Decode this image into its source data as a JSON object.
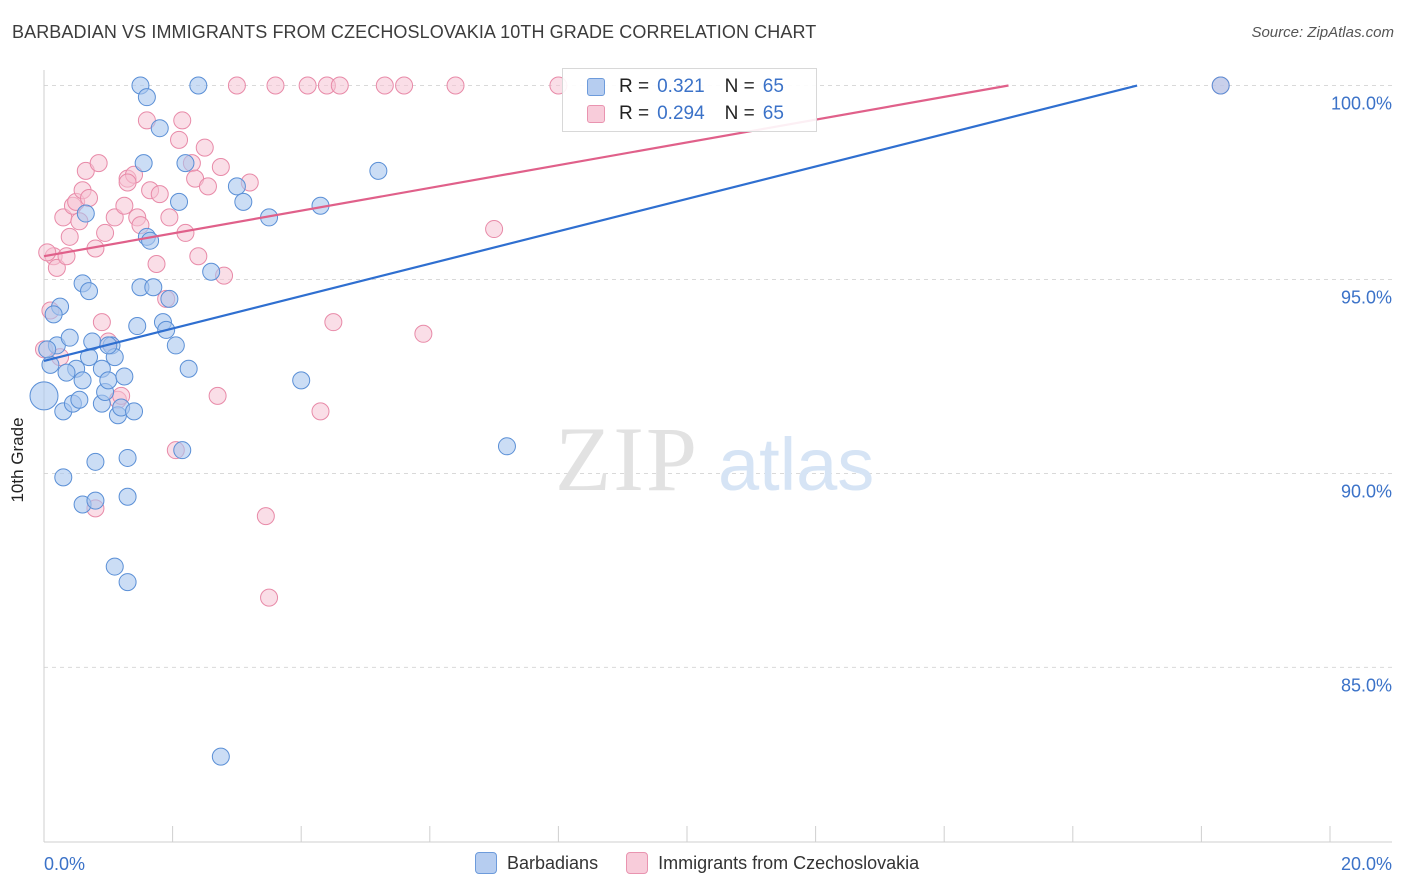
{
  "header": {
    "title": "BARBADIAN VS IMMIGRANTS FROM CZECHOSLOVAKIA 10TH GRADE CORRELATION CHART",
    "source": "Source: ZipAtlas.com"
  },
  "watermark": {
    "zip": "ZIP",
    "atlas": "atlas"
  },
  "legend": {
    "rows": [
      {
        "r_label": "R =",
        "r_value": "0.321",
        "n_label": "N =",
        "n_value": "65"
      },
      {
        "r_label": "R =",
        "r_value": "0.294",
        "n_label": "N =",
        "n_value": "65"
      }
    ],
    "bottom": [
      "Barbadians",
      "Immigrants from Czechoslovakia"
    ]
  },
  "colors": {
    "blue_fill": "#a9c6ee",
    "blue_stroke": "#5a8fd6",
    "blue_line": "#2f6fd0",
    "pink_fill": "#f6c3d3",
    "pink_stroke": "#e88aa8",
    "pink_line": "#e0608a",
    "tick_text": "#3b72c8",
    "grid": "#d9d9d9"
  },
  "chart_data": {
    "type": "scatter",
    "title": "BARBADIAN VS IMMIGRANTS FROM CZECHOSLOVAKIA 10TH GRADE CORRELATION CHART",
    "xlabel": "",
    "ylabel": "10th Grade",
    "xlim": [
      0,
      20
    ],
    "ylim": [
      80.5,
      100.4
    ],
    "x_tick_labels": [
      "0.0%",
      "20.0%"
    ],
    "y_ticks": [
      85,
      90,
      95,
      100
    ],
    "y_tick_labels": [
      "85.0%",
      "90.0%",
      "95.0%",
      "100.0%"
    ],
    "grid": true,
    "legend_position": "top-center",
    "series": [
      {
        "name": "Barbadians",
        "r": 0.321,
        "n": 65,
        "trend": {
          "x": [
            0,
            17.0
          ],
          "y": [
            92.9,
            100.0
          ]
        },
        "points": [
          [
            0.0,
            92.0
          ],
          [
            0.1,
            92.8
          ],
          [
            0.2,
            93.3
          ],
          [
            0.25,
            94.3
          ],
          [
            0.3,
            91.6
          ],
          [
            0.3,
            89.9
          ],
          [
            0.4,
            93.5
          ],
          [
            0.45,
            91.8
          ],
          [
            0.5,
            92.7
          ],
          [
            0.6,
            92.4
          ],
          [
            0.6,
            89.2
          ],
          [
            0.6,
            94.9
          ],
          [
            0.65,
            96.7
          ],
          [
            0.7,
            94.7
          ],
          [
            0.7,
            93.0
          ],
          [
            0.75,
            93.4
          ],
          [
            0.8,
            90.3
          ],
          [
            0.8,
            89.3
          ],
          [
            0.9,
            91.8
          ],
          [
            0.9,
            92.7
          ],
          [
            0.95,
            92.1
          ],
          [
            1.0,
            92.4
          ],
          [
            1.05,
            93.3
          ],
          [
            1.1,
            87.6
          ],
          [
            1.1,
            93.0
          ],
          [
            1.15,
            91.5
          ],
          [
            1.2,
            91.7
          ],
          [
            1.25,
            92.5
          ],
          [
            1.3,
            87.2
          ],
          [
            1.3,
            90.4
          ],
          [
            1.3,
            89.4
          ],
          [
            1.4,
            91.6
          ],
          [
            1.45,
            93.8
          ],
          [
            1.5,
            94.8
          ],
          [
            1.5,
            100.0
          ],
          [
            1.55,
            98.0
          ],
          [
            1.6,
            99.7
          ],
          [
            1.6,
            96.1
          ],
          [
            1.65,
            96.0
          ],
          [
            1.7,
            94.8
          ],
          [
            1.8,
            98.9
          ],
          [
            1.85,
            93.9
          ],
          [
            1.9,
            93.7
          ],
          [
            1.95,
            94.5
          ],
          [
            2.05,
            93.3
          ],
          [
            2.1,
            97.0
          ],
          [
            2.15,
            90.6
          ],
          [
            2.2,
            98.0
          ],
          [
            2.25,
            92.7
          ],
          [
            2.4,
            100.0
          ],
          [
            2.6,
            95.2
          ],
          [
            2.75,
            82.7
          ],
          [
            3.0,
            97.4
          ],
          [
            3.1,
            97.0
          ],
          [
            3.5,
            96.6
          ],
          [
            4.0,
            92.4
          ],
          [
            4.3,
            96.9
          ],
          [
            5.2,
            97.8
          ],
          [
            7.2,
            90.7
          ],
          [
            18.3,
            100.0
          ],
          [
            0.15,
            94.1
          ],
          [
            0.05,
            93.2
          ],
          [
            1.0,
            93.3
          ],
          [
            0.35,
            92.6
          ],
          [
            0.55,
            91.9
          ]
        ]
      },
      {
        "name": "Immigrants from Czechoslovakia",
        "r": 0.294,
        "n": 65,
        "trend": {
          "x": [
            0,
            15.0
          ],
          "y": [
            95.6,
            100.0
          ]
        },
        "points": [
          [
            0.0,
            93.2
          ],
          [
            0.1,
            94.2
          ],
          [
            0.15,
            95.6
          ],
          [
            0.2,
            95.3
          ],
          [
            0.25,
            93.0
          ],
          [
            0.3,
            96.6
          ],
          [
            0.35,
            95.6
          ],
          [
            0.4,
            96.1
          ],
          [
            0.45,
            96.9
          ],
          [
            0.5,
            97.0
          ],
          [
            0.55,
            96.5
          ],
          [
            0.6,
            97.3
          ],
          [
            0.65,
            97.8
          ],
          [
            0.7,
            97.1
          ],
          [
            0.8,
            95.8
          ],
          [
            0.85,
            98.0
          ],
          [
            0.9,
            93.9
          ],
          [
            0.95,
            96.2
          ],
          [
            1.0,
            93.4
          ],
          [
            1.1,
            96.6
          ],
          [
            1.15,
            91.9
          ],
          [
            1.2,
            92.0
          ],
          [
            1.25,
            96.9
          ],
          [
            1.3,
            97.6
          ],
          [
            1.4,
            97.7
          ],
          [
            1.45,
            96.6
          ],
          [
            1.5,
            96.4
          ],
          [
            1.6,
            99.1
          ],
          [
            1.65,
            97.3
          ],
          [
            1.75,
            95.4
          ],
          [
            1.8,
            97.2
          ],
          [
            1.9,
            94.5
          ],
          [
            1.95,
            96.6
          ],
          [
            2.05,
            90.6
          ],
          [
            2.1,
            98.6
          ],
          [
            2.15,
            99.1
          ],
          [
            2.2,
            96.2
          ],
          [
            2.3,
            98.0
          ],
          [
            2.35,
            97.6
          ],
          [
            2.4,
            95.6
          ],
          [
            2.5,
            98.4
          ],
          [
            2.55,
            97.4
          ],
          [
            2.7,
            92.0
          ],
          [
            2.75,
            97.9
          ],
          [
            2.8,
            95.1
          ],
          [
            3.0,
            100.0
          ],
          [
            3.2,
            97.5
          ],
          [
            3.45,
            88.9
          ],
          [
            3.5,
            86.8
          ],
          [
            3.6,
            100.0
          ],
          [
            4.3,
            91.6
          ],
          [
            4.4,
            100.0
          ],
          [
            4.5,
            93.9
          ],
          [
            4.6,
            100.0
          ],
          [
            5.3,
            100.0
          ],
          [
            5.6,
            100.0
          ],
          [
            5.9,
            93.6
          ],
          [
            6.4,
            100.0
          ],
          [
            7.0,
            96.3
          ],
          [
            8.0,
            100.0
          ],
          [
            0.8,
            89.1
          ],
          [
            1.3,
            97.5
          ],
          [
            18.3,
            100.0
          ],
          [
            4.1,
            100.0
          ],
          [
            0.05,
            95.7
          ]
        ]
      }
    ]
  }
}
